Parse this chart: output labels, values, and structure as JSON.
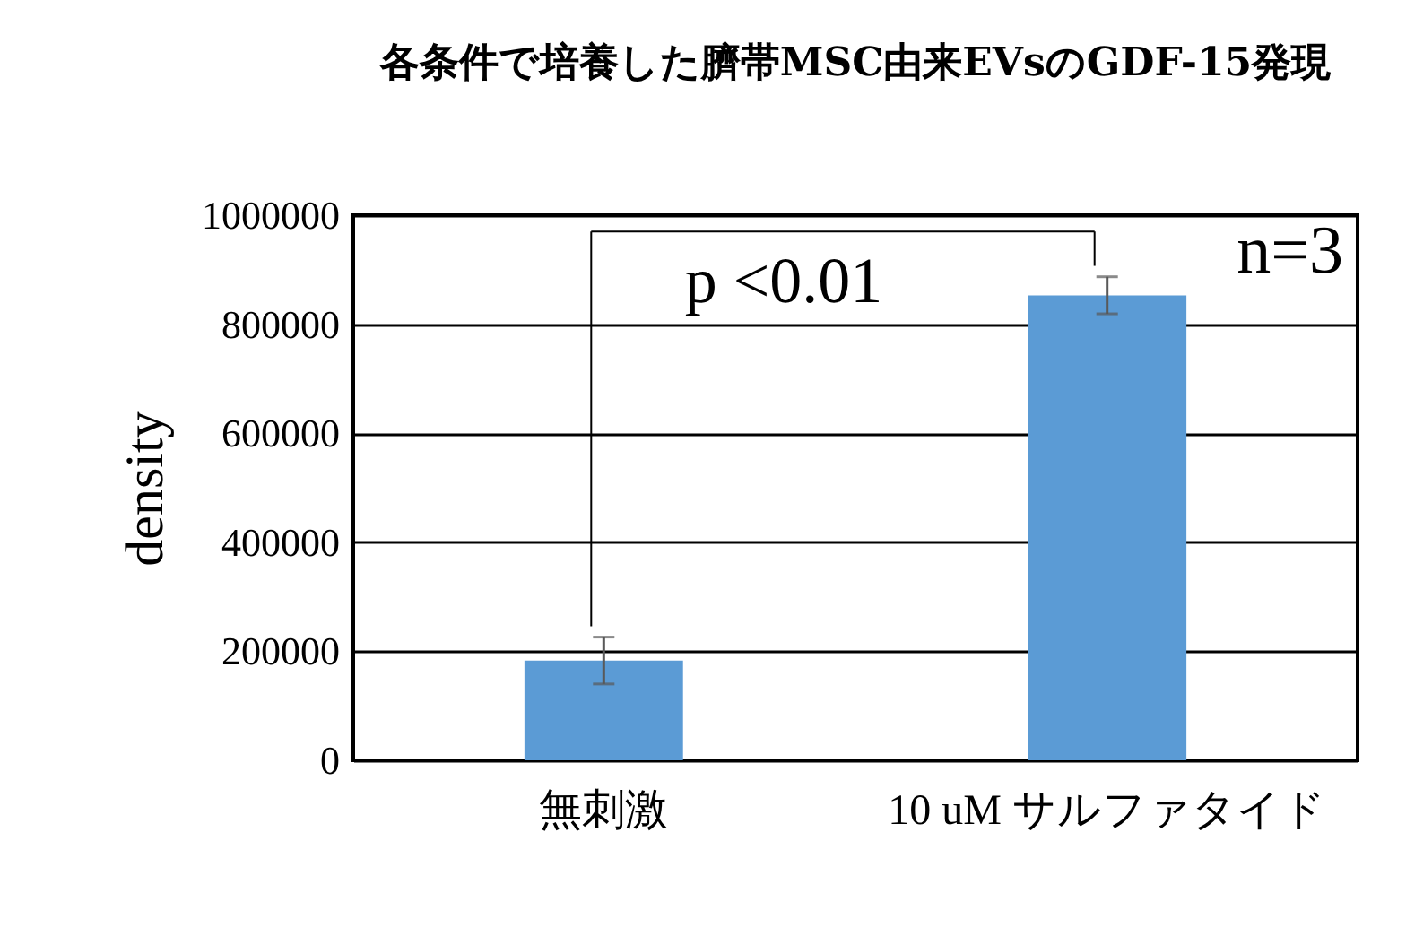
{
  "chart_data": {
    "type": "bar",
    "title": "各条件で培養した臍帯MSC由来EVsのGDF-15発現",
    "ylabel": "density",
    "categories": [
      "無刺激",
      "10 uM\nサルファタイド"
    ],
    "values": [
      183000,
      853000
    ],
    "errors": [
      43000,
      34000
    ],
    "color": "#5b9bd5",
    "ylim": [
      0,
      1000000
    ],
    "yticks": [
      0,
      200000,
      400000,
      600000,
      800000,
      1000000
    ],
    "grid": "y",
    "annotations": [
      "p <0.01",
      "n=3"
    ]
  }
}
